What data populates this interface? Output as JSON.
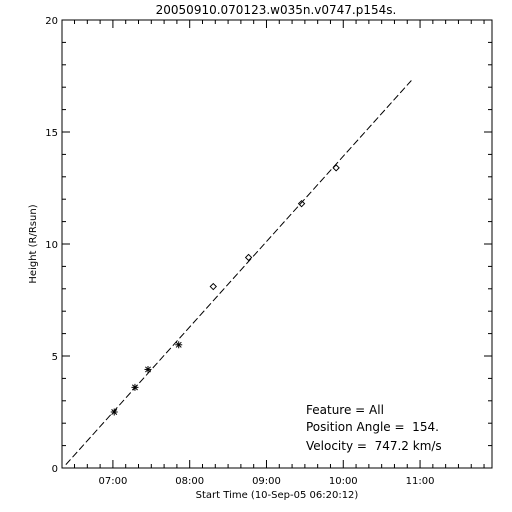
{
  "chart_data": {
    "type": "scatter",
    "title": "20050910.070123.w035n.v0747.p154s.",
    "xlabel": "Start Time (10-Sep-05 06:20:12)",
    "ylabel": "Height (R/Rsun)",
    "x_unit": "hours after 06:20:12",
    "xlim": [
      0,
      5.6
    ],
    "ylim": [
      0,
      20
    ],
    "x_ticks": [
      {
        "value": 0.663,
        "label": "07:00"
      },
      {
        "value": 1.663,
        "label": "08:00"
      },
      {
        "value": 2.663,
        "label": "09:00"
      },
      {
        "value": 3.663,
        "label": "10:00"
      },
      {
        "value": 4.663,
        "label": "11:00"
      }
    ],
    "y_ticks": [
      {
        "value": 0,
        "label": "0"
      },
      {
        "value": 5,
        "label": "5"
      },
      {
        "value": 10,
        "label": "10"
      },
      {
        "value": 15,
        "label": "15"
      },
      {
        "value": 20,
        "label": "20"
      }
    ],
    "series": [
      {
        "marker": "asterisk",
        "x": [
          0.68,
          0.95,
          1.12,
          1.52
        ],
        "y": [
          2.5,
          3.6,
          4.4,
          5.5
        ]
      },
      {
        "marker": "diamond",
        "x": [
          1.97,
          2.43,
          3.12,
          3.57
        ],
        "y": [
          8.1,
          9.4,
          11.8,
          13.4
        ]
      }
    ],
    "fit_line": {
      "style": "dashed",
      "x": [
        0.05,
        4.55
      ],
      "y": [
        0.15,
        17.3
      ]
    },
    "annotations": [
      "Feature = All",
      "Position Angle =  154.",
      "Velocity =  747.2 km/s"
    ],
    "grid": false
  }
}
